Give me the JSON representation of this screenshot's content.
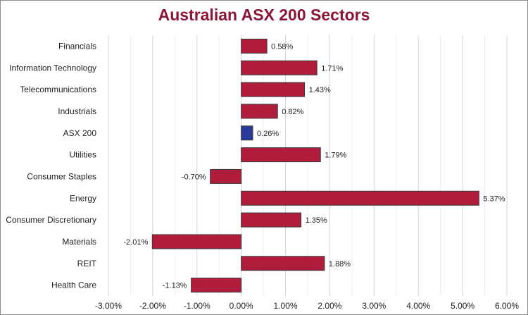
{
  "chart_data": {
    "type": "bar",
    "orientation": "horizontal",
    "title": "Australian ASX 200 Sectors",
    "xlabel": "",
    "ylabel": "",
    "xlim": [
      -3,
      6
    ],
    "x_ticks": [
      "-3.00%",
      "-2.00%",
      "-1.00%",
      "0.00%",
      "1.00%",
      "2.00%",
      "3.00%",
      "4.00%",
      "5.00%",
      "6.00%"
    ],
    "grid": true,
    "legend": "none",
    "colors": {
      "bar": "#b01c3b",
      "highlight": "#2a3a9a",
      "outline": "#3a3a3a",
      "title": "#8b1537"
    },
    "bars": [
      {
        "category": "Financials",
        "value": 0.58,
        "label": "0.58%"
      },
      {
        "category": "Information Technology",
        "value": 1.71,
        "label": "1.71%"
      },
      {
        "category": "Telecommunications",
        "value": 1.43,
        "label": "1.43%"
      },
      {
        "category": "Industrials",
        "value": 0.82,
        "label": "0.82%"
      },
      {
        "category": "ASX 200",
        "value": 0.26,
        "label": "0.26%",
        "highlight": true
      },
      {
        "category": "Utilities",
        "value": 1.79,
        "label": "1.79%"
      },
      {
        "category": "Consumer Staples",
        "value": -0.7,
        "label": "-0.70%"
      },
      {
        "category": "Energy",
        "value": 5.37,
        "label": "5.37%"
      },
      {
        "category": "Consumer Discretionary",
        "value": 1.35,
        "label": "1.35%"
      },
      {
        "category": "Materials",
        "value": -2.01,
        "label": "-2.01%"
      },
      {
        "category": "REIT",
        "value": 1.88,
        "label": "1.88%"
      },
      {
        "category": "Health Care",
        "value": -1.13,
        "label": "-1.13%"
      }
    ]
  }
}
